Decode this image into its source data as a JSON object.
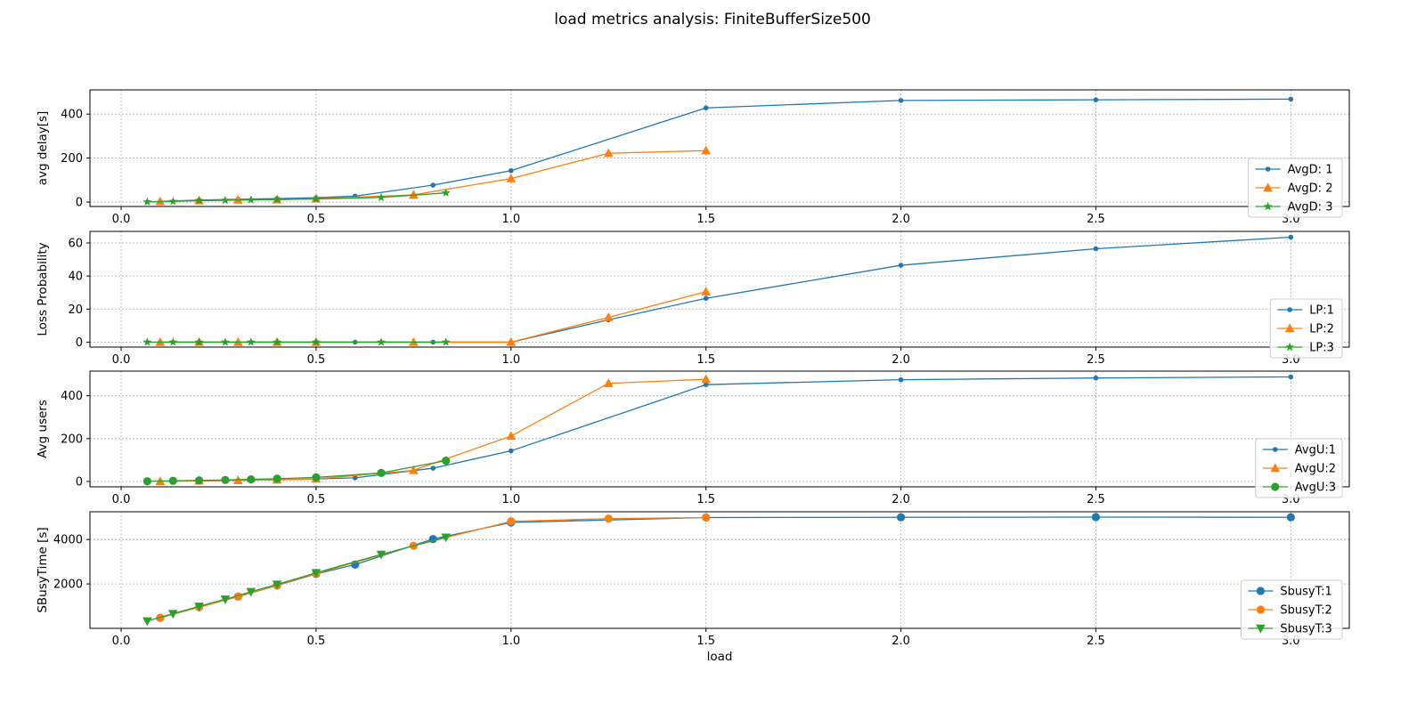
{
  "suptitle": "load metrics analysis: FiniteBufferSize500",
  "colors": {
    "s1": "#1f77b4",
    "s2": "#ff7f0e",
    "s3": "#2ca02c",
    "grid": "#b0b0b0"
  },
  "chart_data": [
    {
      "type": "line",
      "xlabel": "",
      "ylabel": "avg delay[s]",
      "xlim": [
        -0.08,
        3.15
      ],
      "ylim": [
        -20,
        510
      ],
      "xticks": [
        0.0,
        0.5,
        1.0,
        1.5,
        2.0,
        2.5,
        3.0
      ],
      "xtick_labels": [
        "0.0",
        "0.5",
        "1.0",
        "1.5",
        "2.0",
        "2.5",
        "3.0"
      ],
      "yticks": [
        0,
        200,
        400
      ],
      "ytick_labels": [
        "0",
        "200",
        "400"
      ],
      "grid": true,
      "legend": "lower right",
      "series": [
        {
          "name": "AvgD: 1",
          "marker": "dot",
          "x": [
            0.1,
            0.2,
            0.3,
            0.4,
            0.5,
            0.6,
            0.8,
            1.0,
            1.5,
            2.0,
            2.5,
            3.0
          ],
          "y": [
            3,
            9,
            13,
            16,
            20,
            27,
            77,
            143,
            428,
            462,
            465,
            468
          ]
        },
        {
          "name": "AvgD: 2",
          "marker": "triangle",
          "x": [
            0.1,
            0.2,
            0.3,
            0.4,
            0.5,
            0.75,
            1.0,
            1.25,
            1.5
          ],
          "y": [
            3,
            7,
            10,
            11,
            15,
            33,
            107,
            222,
            234
          ]
        },
        {
          "name": "AvgD: 3",
          "marker": "star",
          "x": [
            0.067,
            0.133,
            0.2,
            0.267,
            0.333,
            0.4,
            0.5,
            0.667,
            0.833
          ],
          "y": [
            1,
            3,
            7,
            8,
            10,
            12,
            14,
            21,
            42
          ]
        }
      ]
    },
    {
      "type": "line",
      "xlabel": "",
      "ylabel": "Loss Probability",
      "xlim": [
        -0.08,
        3.15
      ],
      "ylim": [
        -3,
        67
      ],
      "xticks": [
        0.0,
        0.5,
        1.0,
        1.5,
        2.0,
        2.5,
        3.0
      ],
      "xtick_labels": [
        "0.0",
        "0.5",
        "1.0",
        "1.5",
        "2.0",
        "2.5",
        "3.0"
      ],
      "yticks": [
        0,
        20,
        40,
        60
      ],
      "ytick_labels": [
        "0",
        "20",
        "40",
        "60"
      ],
      "grid": true,
      "legend": "lower right",
      "series": [
        {
          "name": "LP:1",
          "marker": "dot",
          "x": [
            0.1,
            0.2,
            0.3,
            0.4,
            0.5,
            0.6,
            0.8,
            1.0,
            1.25,
            1.5,
            2.0,
            2.5,
            3.0
          ],
          "y": [
            0,
            0,
            0,
            0,
            0,
            0,
            0,
            0,
            13.5,
            26.5,
            46.5,
            56.5,
            63.5
          ]
        },
        {
          "name": "LP:2",
          "marker": "triangle",
          "x": [
            0.1,
            0.2,
            0.3,
            0.4,
            0.5,
            0.75,
            1.0,
            1.25,
            1.5
          ],
          "y": [
            0,
            0,
            0,
            0,
            0,
            0,
            0,
            15,
            30.5
          ]
        },
        {
          "name": "LP:3",
          "marker": "star",
          "x": [
            0.067,
            0.133,
            0.2,
            0.267,
            0.333,
            0.4,
            0.5,
            0.667,
            0.833
          ],
          "y": [
            0,
            0,
            0,
            0,
            0,
            0,
            0,
            0,
            0
          ]
        }
      ]
    },
    {
      "type": "line",
      "xlabel": "",
      "ylabel": "Avg users",
      "xlim": [
        -0.08,
        3.15
      ],
      "ylim": [
        -25,
        515
      ],
      "xticks": [
        0.0,
        0.5,
        1.0,
        1.5,
        2.0,
        2.5,
        3.0
      ],
      "xtick_labels": [
        "0.0",
        "0.5",
        "1.0",
        "1.5",
        "2.0",
        "2.5",
        "3.0"
      ],
      "yticks": [
        0,
        200,
        400
      ],
      "ytick_labels": [
        "0",
        "200",
        "400"
      ],
      "grid": true,
      "legend": "lower right",
      "series": [
        {
          "name": "AvgU:1",
          "marker": "dot",
          "x": [
            0.1,
            0.2,
            0.3,
            0.4,
            0.5,
            0.6,
            0.8,
            1.0,
            1.5,
            2.0,
            2.5,
            3.0
          ],
          "y": [
            1,
            3,
            5,
            8,
            12,
            17,
            62,
            143,
            452,
            475,
            483,
            488
          ]
        },
        {
          "name": "AvgU:2",
          "marker": "triangle",
          "x": [
            0.1,
            0.2,
            0.3,
            0.4,
            0.5,
            0.75,
            1.0,
            1.25,
            1.5
          ],
          "y": [
            1,
            3,
            5,
            8,
            12,
            52,
            212,
            458,
            477
          ]
        },
        {
          "name": "AvgU:3",
          "marker": "circle",
          "x": [
            0.067,
            0.133,
            0.2,
            0.267,
            0.333,
            0.4,
            0.5,
            0.667,
            0.833
          ],
          "y": [
            1,
            3,
            5,
            7,
            10,
            13,
            19,
            40,
            97
          ]
        }
      ]
    },
    {
      "type": "line",
      "xlabel": "load",
      "ylabel": "SBusyTime [s]",
      "xlim": [
        -0.08,
        3.15
      ],
      "ylim": [
        0,
        5250
      ],
      "xticks": [
        0.0,
        0.5,
        1.0,
        1.5,
        2.0,
        2.5,
        3.0
      ],
      "xtick_labels": [
        "0.0",
        "0.5",
        "1.0",
        "1.5",
        "2.0",
        "2.5",
        "3.0"
      ],
      "yticks": [
        2000,
        4000
      ],
      "ytick_labels": [
        "2000",
        "4000"
      ],
      "grid": true,
      "legend": "lower right",
      "series": [
        {
          "name": "SbusyT:1",
          "marker": "circle",
          "x": [
            0.1,
            0.2,
            0.3,
            0.4,
            0.5,
            0.6,
            0.8,
            1.0,
            1.5,
            2.0,
            2.5,
            3.0
          ],
          "y": [
            470,
            950,
            1430,
            1930,
            2450,
            2870,
            4020,
            4770,
            4990,
            5000,
            5010,
            5000
          ]
        },
        {
          "name": "SbusyT:2",
          "marker": "circle",
          "x": [
            0.1,
            0.2,
            0.3,
            0.4,
            0.5,
            0.75,
            1.0,
            1.25,
            1.5
          ],
          "y": [
            480,
            950,
            1440,
            1940,
            2470,
            3720,
            4820,
            4940,
            4990
          ]
        },
        {
          "name": "SbusyT:3",
          "marker": "triangle-down",
          "x": [
            0.067,
            0.133,
            0.2,
            0.267,
            0.333,
            0.4,
            0.5,
            0.667,
            0.833
          ],
          "y": [
            330,
            660,
            990,
            1310,
            1650,
            1980,
            2500,
            3330,
            4100
          ]
        }
      ]
    }
  ]
}
